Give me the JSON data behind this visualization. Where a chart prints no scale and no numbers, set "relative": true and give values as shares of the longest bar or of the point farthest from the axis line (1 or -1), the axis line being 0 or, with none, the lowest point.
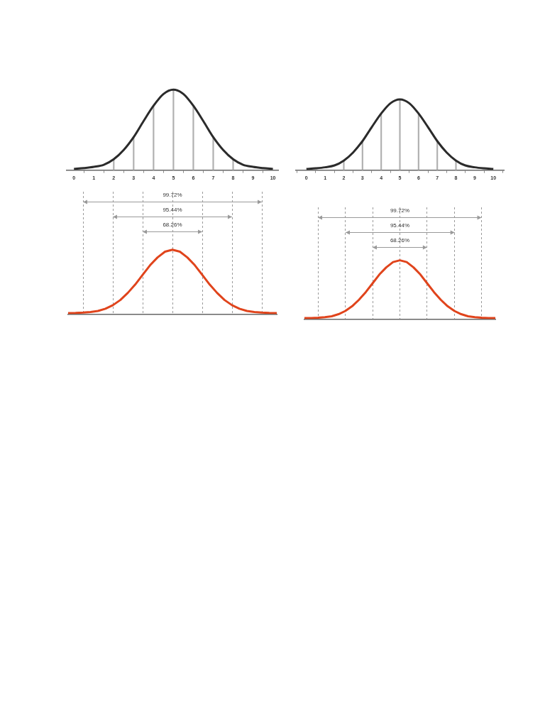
{
  "chart_data": [
    {
      "type": "line",
      "relative": true,
      "marker": "none",
      "xlim": [
        -0.4,
        10.3
      ],
      "xticks": [
        0,
        1,
        2,
        3,
        4,
        5,
        6,
        7,
        8,
        9,
        10
      ],
      "series": [
        {
          "color": "#2b2b2b",
          "x": [
            0,
            0.5,
            1,
            1.5,
            2,
            2.5,
            3,
            3.5,
            4,
            4.5,
            5,
            5.5,
            6,
            6.5,
            7,
            7.5,
            8,
            8.5,
            9,
            9.5,
            10
          ],
          "values": [
            0.015,
            0.025,
            0.04,
            0.066,
            0.135,
            0.25,
            0.41,
            0.61,
            0.8,
            0.946,
            1,
            0.946,
            0.8,
            0.61,
            0.41,
            0.25,
            0.135,
            0.066,
            0.04,
            0.025,
            0.015
          ]
        },
        {
          "type": "bar",
          "color": "#b0b0b0",
          "x": [
            2,
            3,
            4,
            5,
            6,
            7,
            8
          ],
          "values": [
            0.135,
            0.41,
            0.8,
            1,
            0.8,
            0.41,
            0.135
          ]
        }
      ]
    },
    {
      "type": "line",
      "relative": true,
      "marker": "none",
      "xlim": [
        -0.6,
        10.6
      ],
      "xticks": [
        0,
        1,
        2,
        3,
        4,
        5,
        6,
        7,
        8,
        9,
        10
      ],
      "series": [
        {
          "color": "#2b2b2b",
          "x": [
            0,
            0.5,
            1,
            1.5,
            2,
            2.5,
            3,
            3.5,
            4,
            4.5,
            5,
            5.5,
            6,
            6.5,
            7,
            7.5,
            8,
            8.5,
            9,
            9.5,
            10
          ],
          "values": [
            0.015,
            0.025,
            0.04,
            0.066,
            0.135,
            0.25,
            0.41,
            0.61,
            0.8,
            0.946,
            1,
            0.946,
            0.8,
            0.61,
            0.41,
            0.25,
            0.135,
            0.066,
            0.04,
            0.025,
            0.015
          ]
        },
        {
          "type": "bar",
          "color": "#b0b0b0",
          "x": [
            2,
            3,
            4,
            5,
            6,
            7,
            8
          ],
          "values": [
            0.135,
            0.41,
            0.8,
            1,
            0.8,
            0.41,
            0.135
          ]
        }
      ]
    },
    {
      "type": "line",
      "relative": true,
      "marker": "none",
      "grid": "x",
      "annotations": [
        "99.72%",
        "95.44%",
        "68.26%"
      ],
      "categories": [
        null,
        null,
        null,
        null,
        null,
        null,
        null,
        null,
        null,
        null,
        null,
        null,
        null,
        null,
        null,
        null,
        null,
        null,
        null,
        null,
        null,
        null,
        null,
        null,
        null,
        null,
        null,
        null,
        null
      ],
      "series": [
        {
          "color": "#e0441c",
          "values": [
            0.018,
            0.02,
            0.025,
            0.035,
            0.05,
            0.085,
            0.14,
            0.22,
            0.33,
            0.46,
            0.61,
            0.76,
            0.88,
            0.97,
            1,
            0.97,
            0.88,
            0.76,
            0.61,
            0.46,
            0.33,
            0.22,
            0.14,
            0.085,
            0.05,
            0.035,
            0.025,
            0.02,
            0.018
          ]
        }
      ]
    },
    {
      "type": "line",
      "relative": true,
      "marker": "none",
      "grid": "x",
      "annotations": [
        "99.72%",
        "95.44%",
        "68.26%"
      ],
      "categories": [
        null,
        null,
        null,
        null,
        null,
        null,
        null,
        null,
        null,
        null,
        null,
        null,
        null,
        null,
        null,
        null,
        null,
        null,
        null,
        null,
        null,
        null,
        null,
        null,
        null,
        null,
        null,
        null,
        null
      ],
      "series": [
        {
          "color": "#e0441c",
          "values": [
            0.018,
            0.02,
            0.025,
            0.035,
            0.05,
            0.085,
            0.14,
            0.22,
            0.33,
            0.46,
            0.61,
            0.76,
            0.88,
            0.97,
            1,
            0.97,
            0.88,
            0.76,
            0.61,
            0.46,
            0.33,
            0.22,
            0.14,
            0.085,
            0.05,
            0.035,
            0.025,
            0.02,
            0.018
          ]
        }
      ]
    }
  ]
}
